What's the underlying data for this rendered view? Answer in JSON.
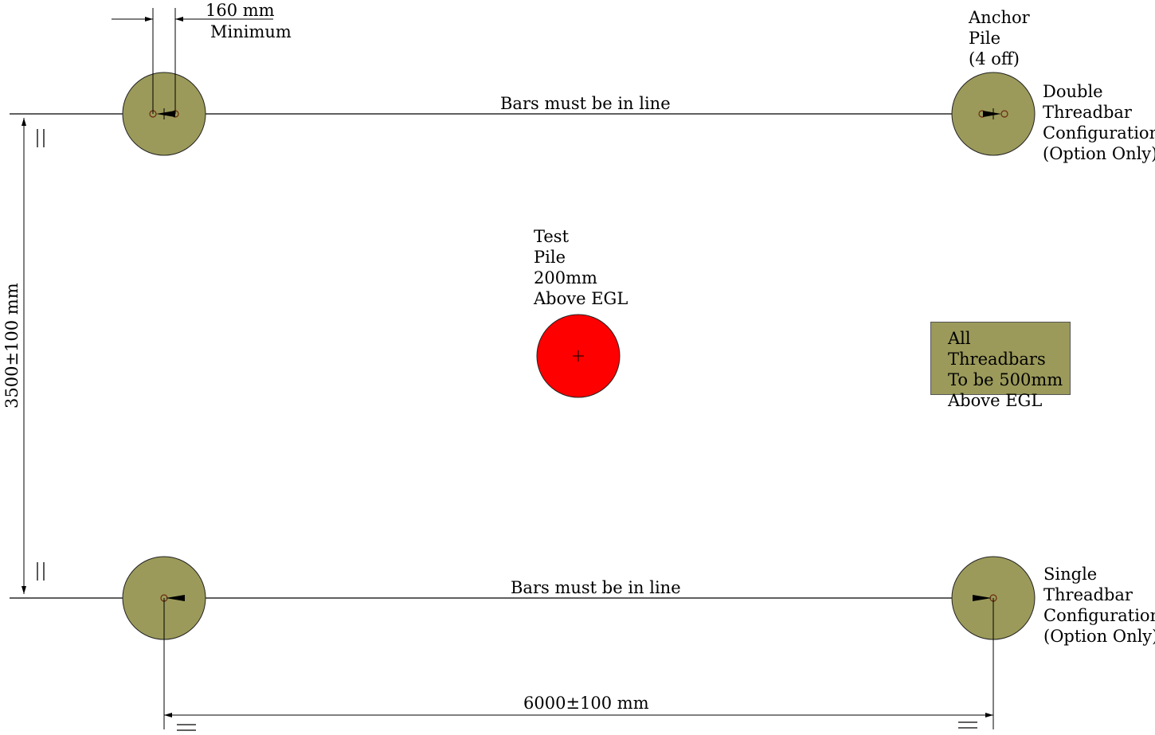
{
  "colors": {
    "anchor_pile_fill": "#9b9a5a",
    "test_pile_fill": "#ff0000",
    "note_fill": "#9b9a5a",
    "line": "#000000"
  },
  "labels": {
    "spacing_dim": "160 mm",
    "spacing_note": "Minimum",
    "anchor_pile": [
      "Anchor",
      "Pile",
      "(4 off)"
    ],
    "double_config": [
      "Double",
      "Threadbar",
      "Configuration",
      "(Option Only)"
    ],
    "single_config": [
      "Single",
      "Threadbar",
      "Configuration",
      "(Option Only)"
    ],
    "bars_in_line_top": "Bars must be in line",
    "bars_in_line_bottom": "Bars must be in line",
    "test_pile": [
      "Test",
      "Pile",
      "200mm",
      "Above EGL"
    ],
    "threadbar_note": [
      "All Threadbars",
      "To be 500mm",
      "Above EGL"
    ],
    "vertical_dim": "3500±100 mm",
    "horizontal_dim": "6000±100 mm"
  }
}
